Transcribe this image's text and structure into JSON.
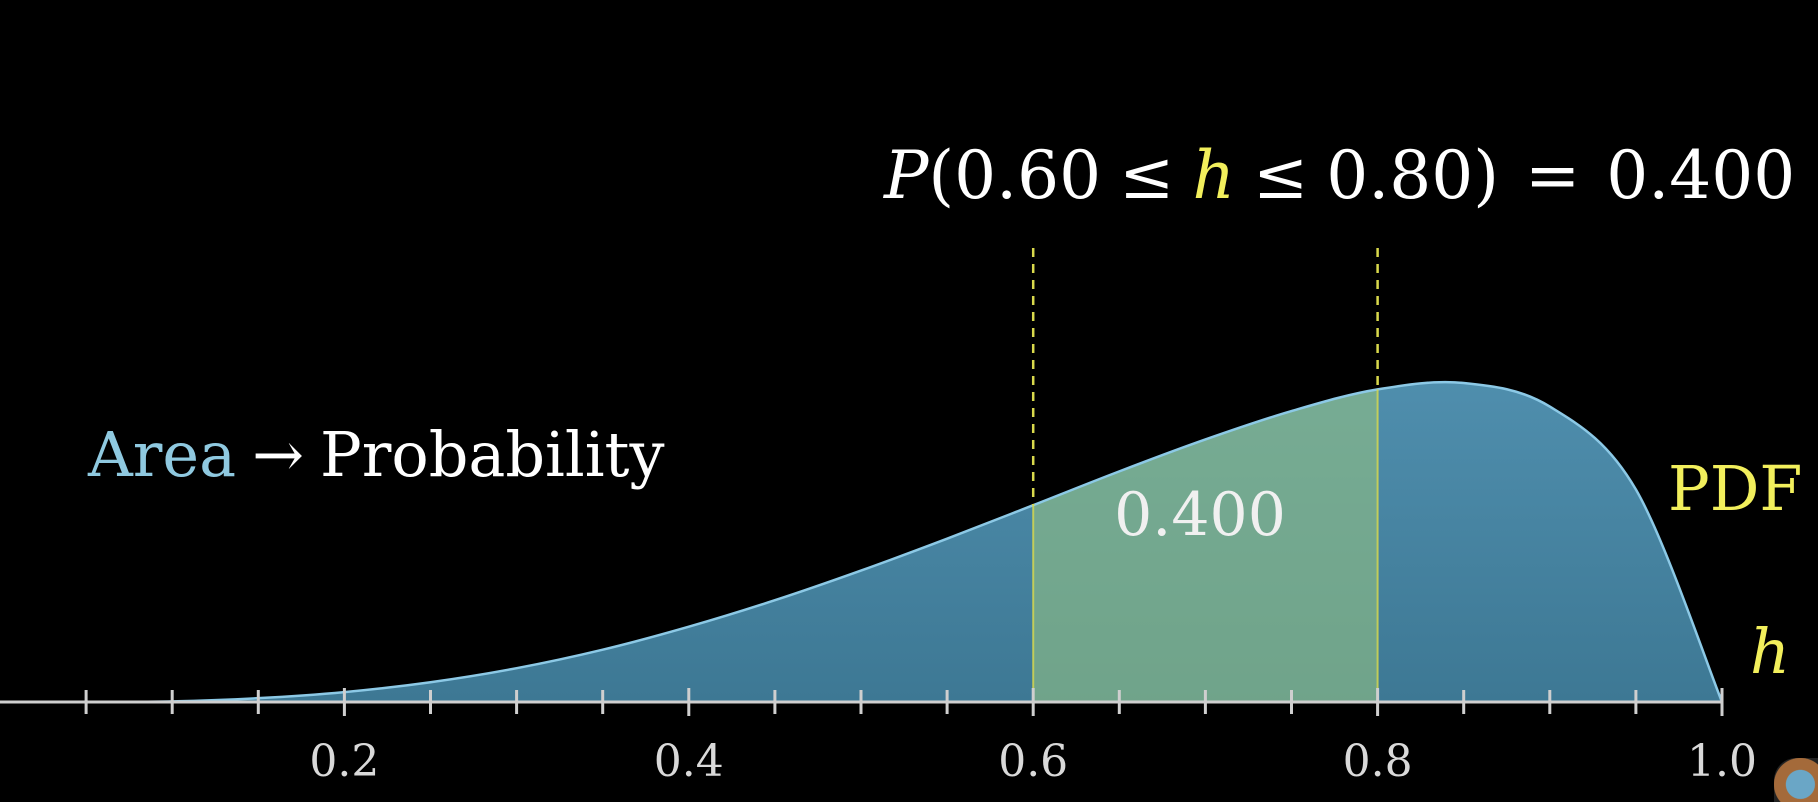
{
  "chart_data": {
    "type": "area",
    "x_range": [
      0,
      1.0
    ],
    "tick_labels": [
      "0.2",
      "0.4",
      "0.6",
      "0.8",
      "1.0"
    ],
    "tick_values": [
      0.2,
      0.4,
      0.6,
      0.8,
      1.0
    ],
    "minor_tick_step": 0.05,
    "series": [
      {
        "x": [
          0.05,
          0.1,
          0.15,
          0.2,
          0.25,
          0.3,
          0.35,
          0.4,
          0.45,
          0.5,
          0.55,
          0.6,
          0.65,
          0.7,
          0.75,
          0.8,
          0.85,
          0.9,
          0.95,
          1.0
        ],
        "y": [
          0.0,
          0.002,
          0.012,
          0.031,
          0.062,
          0.106,
          0.164,
          0.236,
          0.319,
          0.412,
          0.512,
          0.617,
          0.723,
          0.823,
          0.912,
          0.98,
          1.0,
          0.926,
          0.666,
          0.0
        ],
        "color": "#4a8aa8"
      }
    ],
    "highlight": {
      "from": 0.6,
      "to": 0.8,
      "value_label": "0.400",
      "color": "#8fbf84"
    },
    "dashed_markers": [
      0.6,
      0.8
    ],
    "curve_color": "#8cc9e6",
    "marker_color": "#d9d94c"
  },
  "equation": {
    "lhs_func": "P",
    "open": "(",
    "lower": "0.60",
    "leq1": "≤",
    "var": "h",
    "leq2": "≤",
    "upper": "0.80",
    "close": ")",
    "eq": "=",
    "result": "0.400"
  },
  "annotation": {
    "area": "Area",
    "arrow": "→",
    "probability": "Probability"
  },
  "pdf_label": "PDF",
  "axis_var_label": "h"
}
